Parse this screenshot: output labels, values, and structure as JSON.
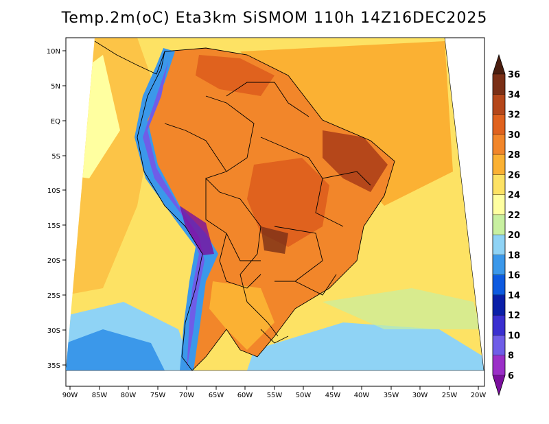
{
  "title": "Temp.2m(oC) Eta3km SiSMOM 110h 14Z16DEC2025",
  "latitude_labels": [
    "10N",
    "5N",
    "EQ",
    "5S",
    "10S",
    "15S",
    "20S",
    "25S",
    "30S",
    "35S"
  ],
  "longitude_labels": [
    "90W",
    "85W",
    "80W",
    "75W",
    "70W",
    "65W",
    "60W",
    "55W",
    "50W",
    "45W",
    "40W",
    "35W",
    "30W",
    "25W",
    "20W"
  ],
  "colorbar": {
    "labels": [
      "6",
      "8",
      "10",
      "12",
      "14",
      "16",
      "18",
      "20",
      "22",
      "24",
      "26",
      "28",
      "30",
      "32",
      "34",
      "36"
    ],
    "colors": [
      "#7b0f9e",
      "#9b2fc8",
      "#6f5de8",
      "#3a2fd0",
      "#0a1fa8",
      "#0d5ae0",
      "#3b98ea",
      "#8fd3f5",
      "#c8f0a0",
      "#ffffa0",
      "#fde264",
      "#fbb133",
      "#f2862a",
      "#e0621e",
      "#b5471a",
      "#7a2f16",
      "#4b1e0f"
    ]
  }
}
